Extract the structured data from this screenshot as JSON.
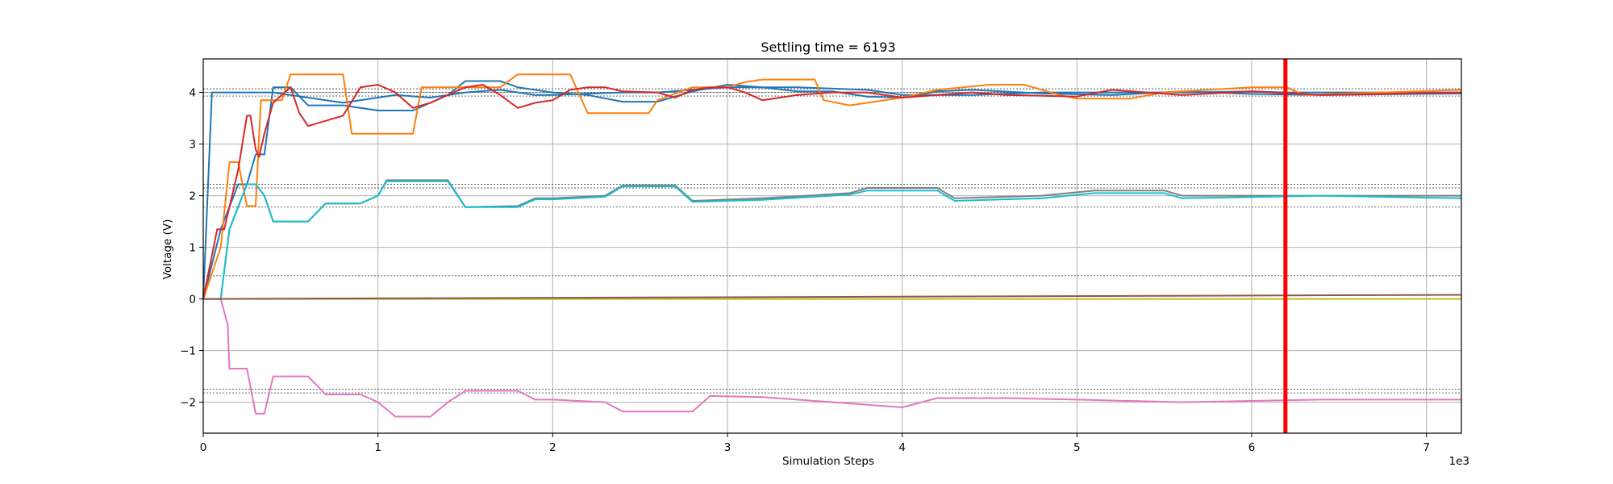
{
  "chart_data": {
    "type": "line",
    "title": "Settling time = 6193",
    "xlabel": "Simulation Steps",
    "ylabel": "Voltage (V)",
    "x_scale_label": "1e3",
    "xlim": [
      0,
      7200
    ],
    "ylim": [
      -2.6,
      4.65
    ],
    "x_ticks": [
      0,
      1000,
      2000,
      3000,
      4000,
      5000,
      6000,
      7000
    ],
    "x_tick_labels": [
      "0",
      "1",
      "2",
      "3",
      "4",
      "5",
      "6",
      "7"
    ],
    "y_ticks": [
      -2,
      -1,
      0,
      1,
      2,
      3,
      4
    ],
    "y_tick_labels": [
      "−2",
      "−1",
      "0",
      "1",
      "2",
      "3",
      "4"
    ],
    "grid": true,
    "settling_time": 6193,
    "settling_color": "#ff0000",
    "reference_lines": [
      4.07,
      4.0,
      3.93,
      2.22,
      2.15,
      1.78,
      0.45,
      -1.75,
      -1.82
    ],
    "series": [
      {
        "color": "#1f77b4",
        "x": [
          0,
          50,
          400,
          600,
          800,
          1100,
          1300,
          1500,
          1700,
          1900,
          2000,
          2400,
          2600,
          2800,
          3000,
          3400,
          3800,
          4000,
          4400,
          4800,
          5200,
          5600,
          6000,
          6193,
          6400,
          7200
        ],
        "y": [
          0,
          4.0,
          4.0,
          3.9,
          3.8,
          3.95,
          3.9,
          4.0,
          4.05,
          3.95,
          3.95,
          4.0,
          4.0,
          4.05,
          4.1,
          4.1,
          4.05,
          3.95,
          3.95,
          4.0,
          4.0,
          4.0,
          4.02,
          4.0,
          4.0,
          4.0
        ]
      },
      {
        "color": "#1f77b4",
        "x": [
          0,
          100,
          200,
          250,
          300,
          350,
          400,
          500,
          600,
          700,
          800,
          1000,
          1200,
          1400,
          1500,
          1700,
          1800,
          2000,
          2200,
          2400,
          2600,
          2800,
          3000,
          3200,
          3400,
          3600,
          3800,
          4000,
          4200,
          4400,
          4800,
          5200,
          5600,
          6000,
          6400,
          7200
        ],
        "y": [
          0,
          1.35,
          2.22,
          2.22,
          2.8,
          2.8,
          4.1,
          4.1,
          3.75,
          3.75,
          3.75,
          3.65,
          3.65,
          3.95,
          4.22,
          4.22,
          4.1,
          4.0,
          3.95,
          3.82,
          3.82,
          4.02,
          4.15,
          4.1,
          4.02,
          4.02,
          3.92,
          3.9,
          4.02,
          4.05,
          3.98,
          3.95,
          4.02,
          3.97,
          3.95,
          3.98
        ]
      },
      {
        "color": "#ff7f0e",
        "x": [
          0,
          100,
          150,
          200,
          250,
          300,
          330,
          450,
          500,
          600,
          700,
          800,
          850,
          1000,
          1200,
          1250,
          1400,
          1500,
          1700,
          1800,
          2000,
          2100,
          2200,
          2300,
          2550,
          2600,
          2800,
          3000,
          3100,
          3200,
          3500,
          3550,
          3700,
          4000,
          4200,
          4500,
          4700,
          4900,
          5000,
          5300,
          5500,
          6000,
          6200,
          6300,
          7200
        ],
        "y": [
          0,
          1.0,
          2.65,
          2.65,
          1.8,
          1.8,
          3.85,
          3.85,
          4.35,
          4.35,
          4.35,
          4.35,
          3.2,
          3.2,
          3.2,
          4.1,
          4.1,
          4.1,
          4.1,
          4.35,
          4.35,
          4.35,
          3.6,
          3.6,
          3.6,
          3.85,
          4.1,
          4.1,
          4.2,
          4.25,
          4.25,
          3.85,
          3.75,
          3.9,
          4.05,
          4.15,
          4.15,
          3.95,
          3.88,
          3.88,
          4.0,
          4.1,
          4.1,
          3.95,
          4.05
        ]
      },
      {
        "color": "#d62728",
        "x": [
          0,
          80,
          120,
          200,
          250,
          270,
          300,
          320,
          350,
          400,
          500,
          550,
          600,
          700,
          800,
          900,
          1000,
          1100,
          1200,
          1300,
          1500,
          1600,
          1700,
          1800,
          1900,
          2000,
          2100,
          2200,
          2300,
          2400,
          2600,
          2700,
          2800,
          2900,
          3000,
          3100,
          3200,
          3400,
          3600,
          3800,
          4000,
          4200,
          4400,
          4600,
          5000,
          5200,
          5400,
          5600,
          6000,
          6400,
          7200
        ],
        "y": [
          0,
          1.35,
          1.35,
          2.5,
          3.55,
          3.55,
          2.9,
          2.75,
          3.2,
          3.8,
          4.1,
          3.6,
          3.35,
          3.45,
          3.55,
          4.1,
          4.15,
          4.0,
          3.7,
          3.8,
          4.1,
          4.15,
          3.95,
          3.7,
          3.8,
          3.85,
          4.05,
          4.1,
          4.1,
          4.02,
          4.0,
          3.9,
          4.05,
          4.1,
          4.1,
          4.0,
          3.85,
          3.95,
          4.0,
          4.0,
          3.9,
          3.95,
          4.0,
          3.95,
          3.92,
          4.05,
          4.0,
          3.95,
          4.02,
          3.95,
          4.0
        ]
      },
      {
        "color": "#7f7f7f",
        "x": [
          0,
          100,
          150,
          250,
          300,
          350,
          400,
          500,
          600,
          700,
          900,
          1000,
          1050,
          1400,
          1500,
          1800,
          1900,
          2000,
          2300,
          2400,
          2700,
          2800,
          3200,
          3700,
          3800,
          4200,
          4300,
          4800,
          5100,
          5500,
          5600,
          6400,
          7200
        ],
        "y": [
          0,
          0,
          1.35,
          2.22,
          2.22,
          2.0,
          1.5,
          1.5,
          1.5,
          1.85,
          1.85,
          2.0,
          2.3,
          2.3,
          1.78,
          1.8,
          1.95,
          1.95,
          2.0,
          2.2,
          2.2,
          1.9,
          1.95,
          2.05,
          2.15,
          2.15,
          1.95,
          2.0,
          2.1,
          2.1,
          2.0,
          2.0,
          2.0
        ]
      },
      {
        "color": "#17becf",
        "x": [
          0,
          100,
          150,
          250,
          300,
          350,
          400,
          500,
          600,
          700,
          900,
          1000,
          1050,
          1400,
          1500,
          1800,
          1900,
          2000,
          2300,
          2400,
          2700,
          2800,
          3200,
          3700,
          3800,
          4200,
          4300,
          4800,
          5100,
          5500,
          5600,
          6400,
          7200
        ],
        "y": [
          0,
          0,
          1.35,
          2.22,
          2.22,
          2.0,
          1.5,
          1.5,
          1.5,
          1.85,
          1.85,
          2.0,
          2.28,
          2.28,
          1.78,
          1.78,
          1.93,
          1.93,
          1.98,
          2.18,
          2.18,
          1.88,
          1.92,
          2.02,
          2.1,
          2.1,
          1.9,
          1.95,
          2.05,
          2.05,
          1.95,
          2.0,
          1.95
        ]
      },
      {
        "color": "#e377c2",
        "x": [
          0,
          100,
          140,
          150,
          250,
          300,
          350,
          400,
          600,
          700,
          900,
          1000,
          1100,
          1300,
          1400,
          1500,
          1800,
          1900,
          2000,
          2300,
          2400,
          2800,
          2900,
          3200,
          3800,
          4000,
          4200,
          4600,
          5000,
          5600,
          6400,
          7200
        ],
        "y": [
          0,
          0,
          -0.5,
          -1.35,
          -1.35,
          -2.22,
          -2.22,
          -1.5,
          -1.5,
          -1.85,
          -1.85,
          -2.0,
          -2.28,
          -2.28,
          -2.0,
          -1.78,
          -1.78,
          -1.95,
          -1.95,
          -2.0,
          -2.18,
          -2.18,
          -1.88,
          -1.9,
          -2.05,
          -2.1,
          -1.92,
          -1.92,
          -1.95,
          -2.0,
          -1.95,
          -1.95
        ]
      },
      {
        "color": "#bcbd22",
        "x": [
          0,
          7200
        ],
        "y": [
          0,
          0
        ]
      },
      {
        "color": "#8c564b",
        "x": [
          0,
          7200
        ],
        "y": [
          0,
          0.08
        ]
      }
    ]
  }
}
